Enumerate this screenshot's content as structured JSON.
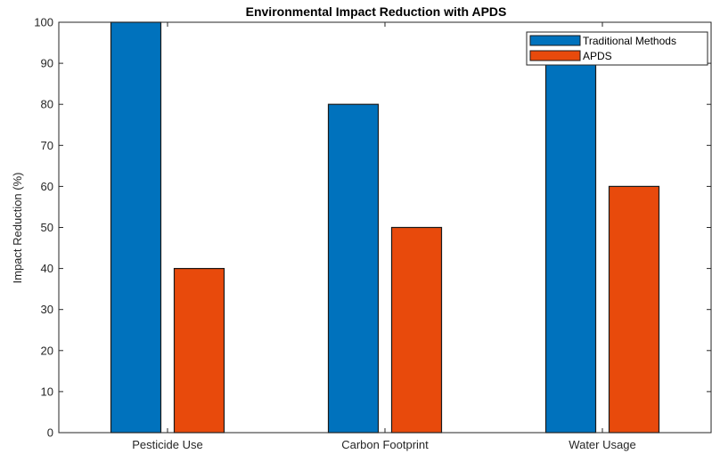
{
  "chart_data": {
    "type": "bar",
    "title": "Environmental Impact Reduction with APDS",
    "xlabel": "",
    "ylabel": "Impact Reduction (%)",
    "categories": [
      "Pesticide Use",
      "Carbon Footprint",
      "Water Usage"
    ],
    "series": [
      {
        "name": "Traditional Methods",
        "values": [
          100,
          80,
          90
        ],
        "color": "#0072BD"
      },
      {
        "name": "APDS",
        "values": [
          40,
          50,
          60
        ],
        "color": "#E84A0C"
      }
    ],
    "ylim": [
      0,
      100
    ],
    "yticks": [
      0,
      10,
      20,
      30,
      40,
      50,
      60,
      70,
      80,
      90,
      100
    ],
    "grid": false,
    "legend_position": "top-right"
  }
}
